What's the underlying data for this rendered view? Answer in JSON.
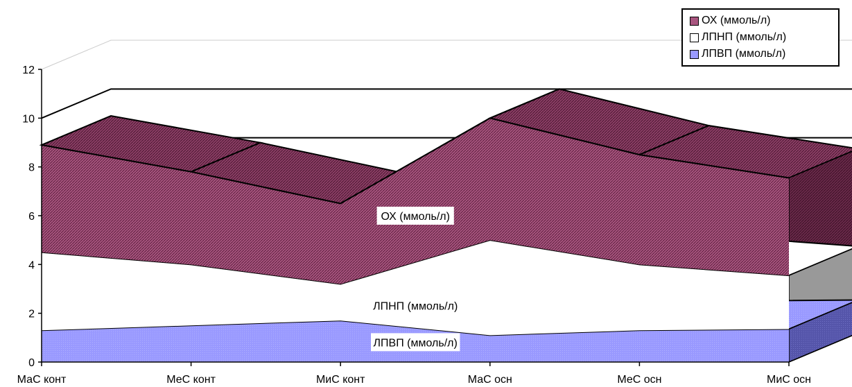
{
  "chart_data": {
    "type": "area",
    "stacked": true,
    "three_d": true,
    "title": "",
    "xlabel": "",
    "ylabel": "",
    "ylim": [
      0,
      12
    ],
    "yticks": [
      "0",
      "2",
      "4",
      "6",
      "8",
      "10",
      "12"
    ],
    "categories": [
      "МаС конт",
      "МеС конт",
      "МиС конт",
      "МаС осн",
      "МеС осн",
      "МиС осн"
    ],
    "series": [
      {
        "name": "ЛПВП (ммоль/л)",
        "values": [
          1.3,
          1.5,
          1.7,
          1.1,
          1.3,
          1.35
        ],
        "color": "#9999ff"
      },
      {
        "name": "ЛПНП (ммоль/л)",
        "values": [
          3.2,
          2.5,
          1.5,
          3.9,
          2.7,
          2.2
        ],
        "color": "#ffffff"
      },
      {
        "name": "ОХ (ммоль/л)",
        "values": [
          4.4,
          3.8,
          3.3,
          5.0,
          4.5,
          4.0
        ],
        "color": "#993366"
      }
    ],
    "series_labels": [
      "ОХ (ммоль/л)",
      "ЛПНП (ммоль/л)",
      "ЛПВП (ммоль/л)"
    ],
    "legend_position": "top-right",
    "grid": true
  }
}
